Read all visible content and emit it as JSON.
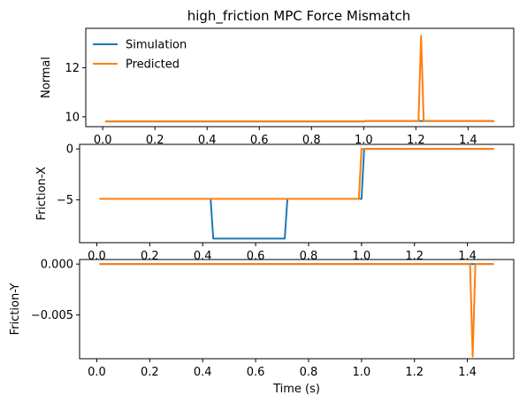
{
  "chart_data": [
    {
      "type": "line",
      "title": "high_friction MPC Force Mismatch",
      "ylabel": "Normal",
      "xlabel": "",
      "xlim": [
        -0.065,
        1.575
      ],
      "ylim": [
        9.6,
        13.6
      ],
      "xticks": [
        0.0,
        0.2,
        0.4,
        0.6,
        0.8,
        1.0,
        1.2,
        1.4
      ],
      "xtick_labels": [
        "0.0",
        "0.2",
        "0.4",
        "0.6",
        "0.8",
        "1.0",
        "1.2",
        "1.4"
      ],
      "yticks": [
        10,
        12
      ],
      "ytick_labels": [
        "10",
        "12"
      ],
      "legend": {
        "location": "upper left",
        "entries": [
          "Simulation",
          "Predicted"
        ]
      },
      "series": [
        {
          "name": "Simulation",
          "color": "#1f77b4",
          "x": [
            0.01,
            1.0,
            1.01,
            1.49,
            1.5
          ],
          "y": [
            9.81,
            9.81,
            9.83,
            9.83,
            9.81
          ]
        },
        {
          "name": "Predicted",
          "color": "#ff7f0e",
          "x": [
            0.01,
            1.0,
            1.01,
            1.21,
            1.22,
            1.23,
            1.5
          ],
          "y": [
            9.81,
            9.81,
            9.83,
            9.83,
            13.3,
            9.83,
            9.83
          ]
        }
      ]
    },
    {
      "type": "line",
      "title": "",
      "ylabel": "Friction-X",
      "xlabel": "",
      "xlim": [
        -0.065,
        1.575
      ],
      "ylim": [
        -9.2,
        0.45
      ],
      "xticks": [
        0.0,
        0.2,
        0.4,
        0.6,
        0.8,
        1.0,
        1.2,
        1.4
      ],
      "xtick_labels": [
        "0.0",
        "0.2",
        "0.4",
        "0.6",
        "0.8",
        "1.0",
        "1.2",
        "1.4"
      ],
      "yticks": [
        -5,
        0
      ],
      "ytick_labels": [
        "−5",
        "0"
      ],
      "series": [
        {
          "name": "Simulation",
          "color": "#1f77b4",
          "x": [
            0.01,
            0.43,
            0.44,
            0.71,
            0.72,
            1.0,
            1.01,
            1.5
          ],
          "y": [
            -4.9,
            -4.9,
            -8.8,
            -8.8,
            -4.9,
            -4.9,
            0.0,
            0.0
          ]
        },
        {
          "name": "Predicted",
          "color": "#ff7f0e",
          "x": [
            0.01,
            0.99,
            1.0,
            1.5
          ],
          "y": [
            -4.9,
            -4.9,
            0.0,
            0.0
          ]
        }
      ]
    },
    {
      "type": "line",
      "title": "",
      "ylabel": "Friction-Y",
      "xlabel": "Time (s)",
      "xlim": [
        -0.065,
        1.575
      ],
      "ylim": [
        -0.0093,
        0.00045
      ],
      "xticks": [
        0.0,
        0.2,
        0.4,
        0.6,
        0.8,
        1.0,
        1.2,
        1.4
      ],
      "xtick_labels": [
        "0.0",
        "0.2",
        "0.4",
        "0.6",
        "0.8",
        "1.0",
        "1.2",
        "1.4"
      ],
      "yticks": [
        0.0,
        -0.005
      ],
      "ytick_labels": [
        "0.000",
        "−0.005"
      ],
      "series": [
        {
          "name": "Simulation",
          "color": "#1f77b4",
          "x": [
            0.01,
            1.5
          ],
          "y": [
            0.0,
            0.0
          ]
        },
        {
          "name": "Predicted",
          "color": "#ff7f0e",
          "x": [
            0.01,
            1.41,
            1.42,
            1.43,
            1.5
          ],
          "y": [
            0.0,
            0.0,
            -0.0091,
            0.0,
            0.0
          ]
        }
      ]
    }
  ]
}
